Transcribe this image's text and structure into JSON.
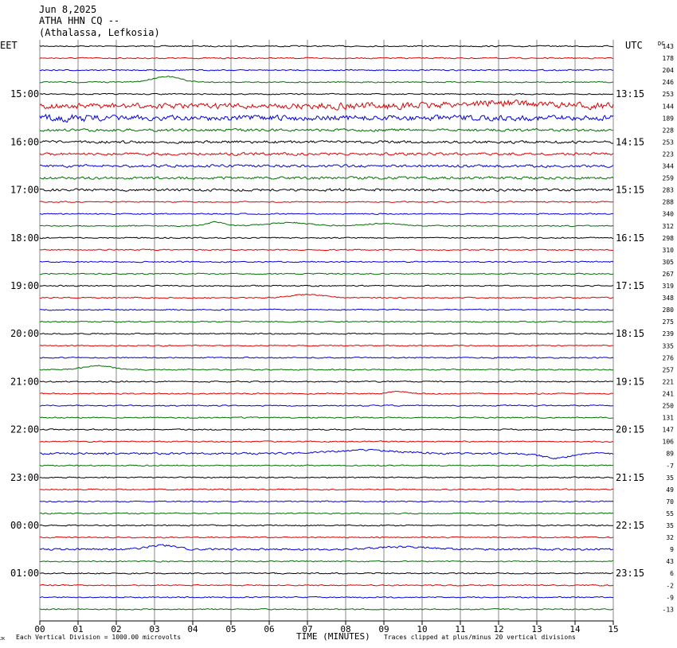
{
  "header": {
    "date": "Jun 8,2025",
    "station": "ATHA HHN CQ --",
    "location": "(Athalassa, Lefkosia)"
  },
  "labels": {
    "left_tz": "EET",
    "right_tz": "UTC",
    "dc": "DC",
    "xlabel": "TIME (MINUTES)",
    "footer_left": "Each Vertical Division = 1000.00 microvolts",
    "footer_right": "Traces clipped at plus/minus 20 vertical divisions",
    "corner_mark": "JK"
  },
  "colors": {
    "trace_cycle": [
      "#000000",
      "#e00000",
      "#0000e0",
      "#007000"
    ],
    "grid": "#888888",
    "text": "#000000"
  },
  "chart_data": {
    "type": "line",
    "chart_kind": "helicorder seismogram",
    "x_ticks": [
      "00",
      "01",
      "02",
      "03",
      "04",
      "05",
      "06",
      "07",
      "08",
      "09",
      "10",
      "11",
      "12",
      "13",
      "14",
      "15"
    ],
    "xlim": [
      0,
      15
    ],
    "trace_count": 48,
    "left_hour_labels": [
      "15:00",
      "16:00",
      "17:00",
      "18:00",
      "19:00",
      "20:00",
      "21:00",
      "22:00",
      "23:00",
      "00:00",
      "01:00"
    ],
    "right_hour_labels": [
      "13:15",
      "14:15",
      "15:15",
      "16:15",
      "17:15",
      "18:15",
      "19:15",
      "20:15",
      "21:15",
      "22:15",
      "23:15"
    ],
    "first_hour_trace_index": 4,
    "dc_values": [
      "143",
      "178",
      "204",
      "246",
      "253",
      "144",
      "189",
      "228",
      "253",
      "223",
      "344",
      "259",
      "283",
      "288",
      "340",
      "312",
      "298",
      "310",
      "305",
      "267",
      "319",
      "348",
      "280",
      "275",
      "239",
      "335",
      "276",
      "257",
      "221",
      "241",
      "250",
      "131",
      "147",
      "106",
      "89",
      "-7",
      "35",
      "49",
      "70",
      "55",
      "35",
      "32",
      "9",
      "43",
      "6",
      "-2",
      "-9",
      "-13"
    ],
    "events": [
      {
        "trace": 3,
        "minute": 3.3,
        "amp": 7,
        "width": 0.5
      },
      {
        "trace": 5,
        "minute": 12.0,
        "amp": 4,
        "width": 1.5
      },
      {
        "trace": 15,
        "minute": 4.6,
        "amp": 5,
        "width": 0.3
      },
      {
        "trace": 15,
        "minute": 6.5,
        "amp": 4,
        "width": 0.8
      },
      {
        "trace": 15,
        "minute": 9.0,
        "amp": 3,
        "width": 0.7
      },
      {
        "trace": 21,
        "minute": 7.0,
        "amp": 4,
        "width": 0.6
      },
      {
        "trace": 27,
        "minute": 1.5,
        "amp": 5,
        "width": 0.5
      },
      {
        "trace": 29,
        "minute": 9.4,
        "amp": 3,
        "width": 0.3
      },
      {
        "trace": 34,
        "minute": 8.5,
        "amp": 4,
        "width": 1.2
      },
      {
        "trace": 34,
        "minute": 13.5,
        "amp": -6,
        "width": 0.5
      },
      {
        "trace": 42,
        "minute": 3.2,
        "amp": 5,
        "width": 0.5
      },
      {
        "trace": 42,
        "minute": 9.5,
        "amp": 3,
        "width": 1.0
      }
    ]
  }
}
